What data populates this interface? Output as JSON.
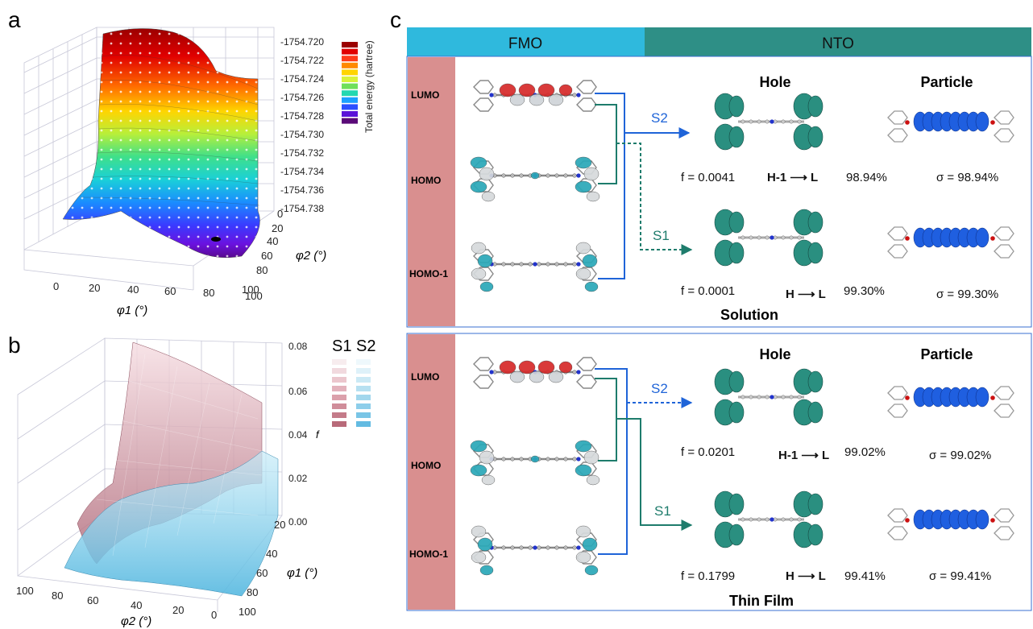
{
  "panel_a": {
    "label": "a",
    "zticks": [
      "-1754.720",
      "-1754.722",
      "-1754.724",
      "-1754.726",
      "-1754.728",
      "-1754.730",
      "-1754.732",
      "-1754.734",
      "-1754.736",
      "-1754.738"
    ],
    "xticks": [
      "0",
      "20",
      "40",
      "60",
      "80",
      "100"
    ],
    "yticks": [
      "0",
      "20",
      "40",
      "60",
      "80",
      "100"
    ],
    "xlabel": "φ1 (°)",
    "ylabel": "φ2 (°)",
    "colorbar_label": "Total energy (hartree)",
    "colorbar_colors": [
      "#9b0000",
      "#e00000",
      "#ff3b1a",
      "#ff8a00",
      "#ffd400",
      "#d9f23a",
      "#6fe05a",
      "#22d8b0",
      "#1aa0ff",
      "#2b4fff",
      "#5a12d8",
      "#5a0a78"
    ]
  },
  "panel_b": {
    "label": "b",
    "zticks": [
      "0.08",
      "0.06",
      "0.04",
      "0.02",
      "0.00"
    ],
    "zlabel": "f",
    "legend": {
      "s1": "S1",
      "s2": "S2"
    },
    "s1_colors": [
      "#f7ecee",
      "#f1d9de",
      "#ebc6cd",
      "#e3b2bc",
      "#dba0ab",
      "#d08d9a",
      "#c47b89",
      "#b86a79"
    ],
    "s2_colors": [
      "#eef8fc",
      "#def1f9",
      "#cbe9f5",
      "#b6e0f1",
      "#a2d7ed",
      "#8dceea",
      "#79c5e6",
      "#63bbe2"
    ],
    "yticks": [
      "20",
      "40",
      "60",
      "80",
      "100"
    ],
    "xticks": [
      "100",
      "80",
      "60",
      "40",
      "20",
      "0"
    ],
    "xlabel": "φ2 (°)",
    "ylabel": "φ1 (°)"
  },
  "panel_c": {
    "label": "c",
    "header_fmo": "FMO",
    "header_nto": "NTO",
    "orbitals": [
      "LUMO",
      "HOMO",
      "HOMO-1"
    ],
    "hole": "Hole",
    "particle": "Particle",
    "solution": {
      "title": "Solution",
      "s2": {
        "state": "S2",
        "f": "f = 0.0041",
        "transition": "H-1 ⟶ L",
        "pct": "98.94%",
        "sigma": "σ = 98.94%"
      },
      "s1": {
        "state": "S1",
        "f": "f = 0.0001",
        "transition": "H ⟶ L",
        "pct": "99.30%",
        "sigma": "σ = 99.30%"
      }
    },
    "film": {
      "title": "Thin Film",
      "s2": {
        "state": "S2",
        "f": "f = 0.0201",
        "transition": "H-1 ⟶ L",
        "pct": "99.02%",
        "sigma": "σ = 99.02%"
      },
      "s1": {
        "state": "S1",
        "f": "f = 0.1799",
        "transition": "H ⟶ L",
        "pct": "99.41%",
        "sigma": "σ = 99.41%"
      }
    },
    "colors": {
      "fmo_header": "#2fb9dd",
      "nto_header": "#2e8f86",
      "side": "#d98f8f",
      "blue": "#1f64d8",
      "teal": "#1e7c6c",
      "box_border": "#3a6fd0"
    }
  }
}
